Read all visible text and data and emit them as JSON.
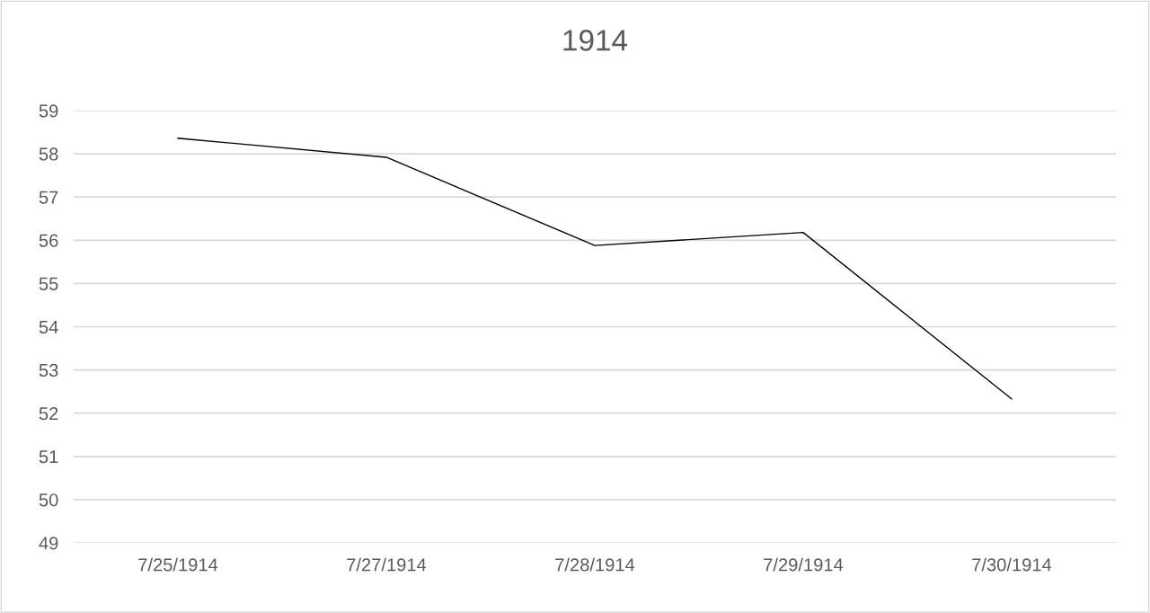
{
  "chart_data": {
    "type": "line",
    "title": "1914",
    "categories": [
      "7/25/1914",
      "7/27/1914",
      "7/28/1914",
      "7/29/1914",
      "7/30/1914"
    ],
    "series": [
      {
        "color": "#000000",
        "values": [
          58.36,
          57.92,
          55.88,
          56.18,
          52.33
        ]
      }
    ],
    "ylim": [
      49,
      59
    ],
    "yticks": [
      49,
      50,
      51,
      52,
      53,
      54,
      55,
      56,
      57,
      58,
      59
    ],
    "grid": "y",
    "marker": "none",
    "line_style": "solid"
  }
}
